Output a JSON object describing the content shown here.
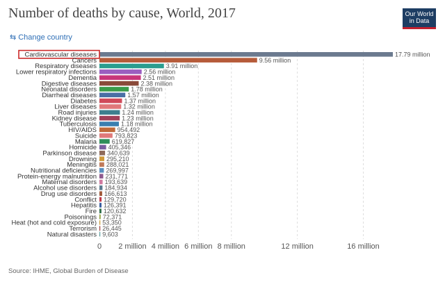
{
  "header": {
    "title": "Number of deaths by cause, World, 2017",
    "logo_line1": "Our World",
    "logo_line2": "in Data",
    "change_country": "Change country",
    "change_country_icon": "swap-arrows-icon"
  },
  "footer": {
    "source": "Source: IHME, Global Burden of Disease"
  },
  "colors": {
    "highlight_border": "#cc2a2a",
    "grid": "#dddddd"
  },
  "chart_data": {
    "type": "bar",
    "orientation": "horizontal",
    "title": "Number of deaths by cause, World, 2017",
    "highlighted": "Cardiovascular diseases",
    "xlim": [
      0,
      18600000
    ],
    "xticks": [
      0,
      2000000,
      4000000,
      6000000,
      8000000,
      12000000,
      16000000
    ],
    "xtick_labels": [
      "0",
      "2 million",
      "4 million",
      "6 million",
      "8 million",
      "12 million",
      "16 million"
    ],
    "bars": [
      {
        "label": "Cardiovascular diseases",
        "value": 17790000,
        "display": "17.79 million",
        "color": "#6b7a8f"
      },
      {
        "label": "Cancers",
        "value": 9560000,
        "display": "9.56 million",
        "color": "#b65b3a"
      },
      {
        "label": "Respiratory diseases",
        "value": 3910000,
        "display": "3.91 million",
        "color": "#2a9d8f"
      },
      {
        "label": "Lower respiratory infections",
        "value": 2560000,
        "display": "2.56 million",
        "color": "#9b5fc0"
      },
      {
        "label": "Dementia",
        "value": 2510000,
        "display": "2.51 million",
        "color": "#c8367a"
      },
      {
        "label": "Digestive diseases",
        "value": 2380000,
        "display": "2.38 million",
        "color": "#8a4a3a"
      },
      {
        "label": "Neonatal disorders",
        "value": 1780000,
        "display": "1.78 million",
        "color": "#3a9b4a"
      },
      {
        "label": "Diarrheal diseases",
        "value": 1570000,
        "display": "1.57 million",
        "color": "#4a6fa5"
      },
      {
        "label": "Diabetes",
        "value": 1370000,
        "display": "1.37 million",
        "color": "#d04a5a"
      },
      {
        "label": "Liver diseases",
        "value": 1320000,
        "display": "1.32 million",
        "color": "#e0787a"
      },
      {
        "label": "Road injuries",
        "value": 1240000,
        "display": "1.24 million",
        "color": "#3d7f8f"
      },
      {
        "label": "Kidney disease",
        "value": 1230000,
        "display": "1.23 million",
        "color": "#a0405a"
      },
      {
        "label": "Tuberculosis",
        "value": 1180000,
        "display": "1.18 million",
        "color": "#3a7fb0"
      },
      {
        "label": "HIV/AIDS",
        "value": 954492,
        "display": "954,492",
        "color": "#c06a3a"
      },
      {
        "label": "Suicide",
        "value": 793823,
        "display": "793,823",
        "color": "#e07a7a"
      },
      {
        "label": "Malaria",
        "value": 619827,
        "display": "619,827",
        "color": "#2f8f5a"
      },
      {
        "label": "Homicide",
        "value": 405346,
        "display": "405,346",
        "color": "#7a5fa0"
      },
      {
        "label": "Parkinson disease",
        "value": 340639,
        "display": "340,639",
        "color": "#8f6a5a"
      },
      {
        "label": "Drowning",
        "value": 295210,
        "display": "295,210",
        "color": "#d09a3a"
      },
      {
        "label": "Meningitis",
        "value": 288021,
        "display": "288,021",
        "color": "#c07a5a"
      },
      {
        "label": "Nutritional deficiencies",
        "value": 269997,
        "display": "269,997",
        "color": "#5a8fc0"
      },
      {
        "label": "Protein-energy malnutrition",
        "value": 231771,
        "display": "231,771",
        "color": "#8f5a8f"
      },
      {
        "label": "Maternal disorders",
        "value": 193639,
        "display": "193,639",
        "color": "#d07aa0"
      },
      {
        "label": "Alcohol use disorders",
        "value": 184934,
        "display": "184,934",
        "color": "#5a7a8f"
      },
      {
        "label": "Drug use disorders",
        "value": 166613,
        "display": "166,613",
        "color": "#a05a3a"
      },
      {
        "label": "Conflict",
        "value": 129720,
        "display": "129,720",
        "color": "#c03a4a"
      },
      {
        "label": "Hepatitis",
        "value": 126391,
        "display": "126,391",
        "color": "#3a5fa0"
      },
      {
        "label": "Fire",
        "value": 120632,
        "display": "120,632",
        "color": "#2f6f4a"
      },
      {
        "label": "Poisonings",
        "value": 72371,
        "display": "72,371",
        "color": "#8fa03a"
      },
      {
        "label": "Heat (hot and cold exposure)",
        "value": 53350,
        "display": "53,350",
        "color": "#d0a03a"
      },
      {
        "label": "Terrorism",
        "value": 26445,
        "display": "26,445",
        "color": "#a03a3a"
      },
      {
        "label": "Natural disasters",
        "value": 9603,
        "display": "9,603",
        "color": "#5a9fa0"
      }
    ]
  }
}
